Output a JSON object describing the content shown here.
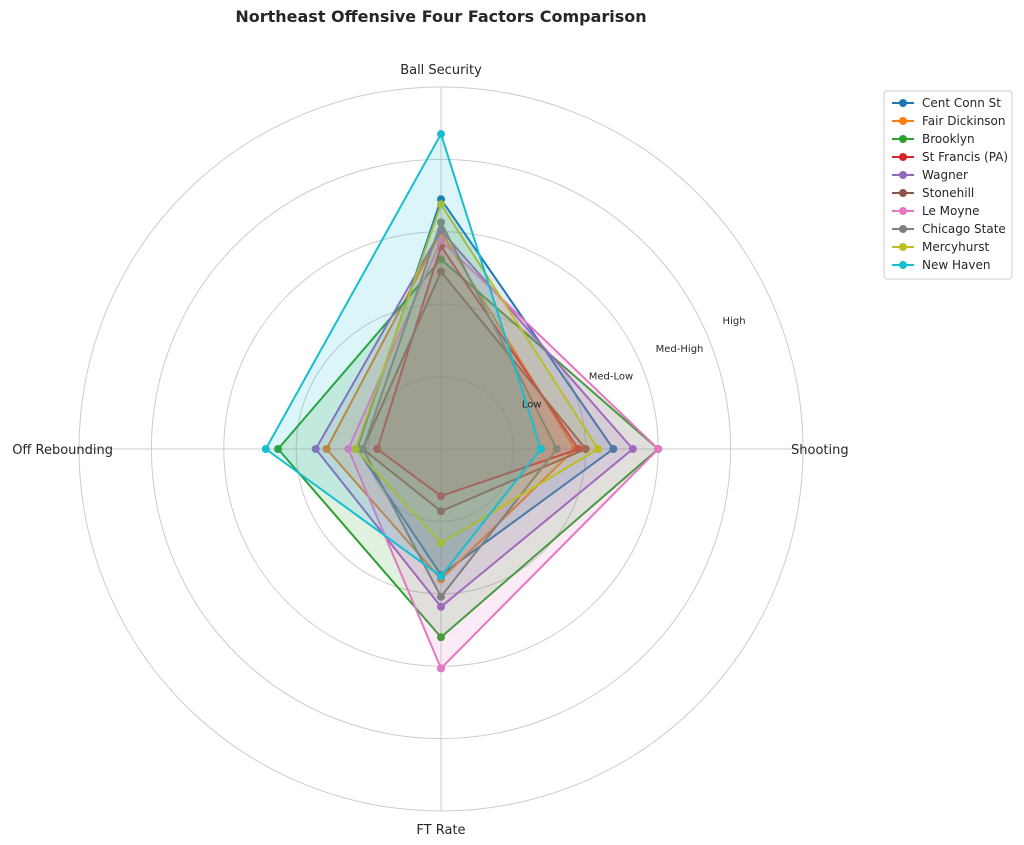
{
  "chart_data": {
    "type": "radar",
    "title": "Northeast Offensive Four Factors Comparison",
    "axes": [
      "Ball Security",
      "Shooting",
      "FT Rate",
      "Off Rebounding"
    ],
    "rmax": 5,
    "ring_labels": [
      "Low",
      "Med-Low",
      "Med-High",
      "High"
    ],
    "series": [
      {
        "name": "Cent Conn St",
        "color": "#1f77b4",
        "values": [
          3.45,
          2.38,
          1.74,
          1.16
        ]
      },
      {
        "name": "Fair Dickinson",
        "color": "#ff7f0e",
        "values": [
          3.0,
          1.85,
          1.8,
          1.58
        ]
      },
      {
        "name": "Brooklyn",
        "color": "#2ca02c",
        "values": [
          2.62,
          3.0,
          2.6,
          2.25
        ]
      },
      {
        "name": "St Francis (PA)",
        "color": "#d62728",
        "values": [
          2.8,
          1.9,
          0.65,
          0.88
        ]
      },
      {
        "name": "Wagner",
        "color": "#9467bd",
        "values": [
          3.02,
          2.65,
          2.18,
          1.73
        ]
      },
      {
        "name": "Stonehill",
        "color": "#8c564b",
        "values": [
          2.45,
          2.0,
          0.86,
          1.08
        ]
      },
      {
        "name": "Le Moyne",
        "color": "#e377c2",
        "values": [
          2.88,
          3.0,
          3.03,
          1.28
        ]
      },
      {
        "name": "Chicago State",
        "color": "#7f7f7f",
        "values": [
          3.13,
          1.6,
          2.04,
          1.08
        ]
      },
      {
        "name": "Mercyhurst",
        "color": "#bcbd22",
        "values": [
          3.38,
          2.17,
          1.3,
          1.18
        ]
      },
      {
        "name": "New Haven",
        "color": "#17becf",
        "values": [
          4.35,
          1.38,
          1.76,
          2.42
        ]
      }
    ],
    "legend": "upper-right",
    "grid": true
  }
}
